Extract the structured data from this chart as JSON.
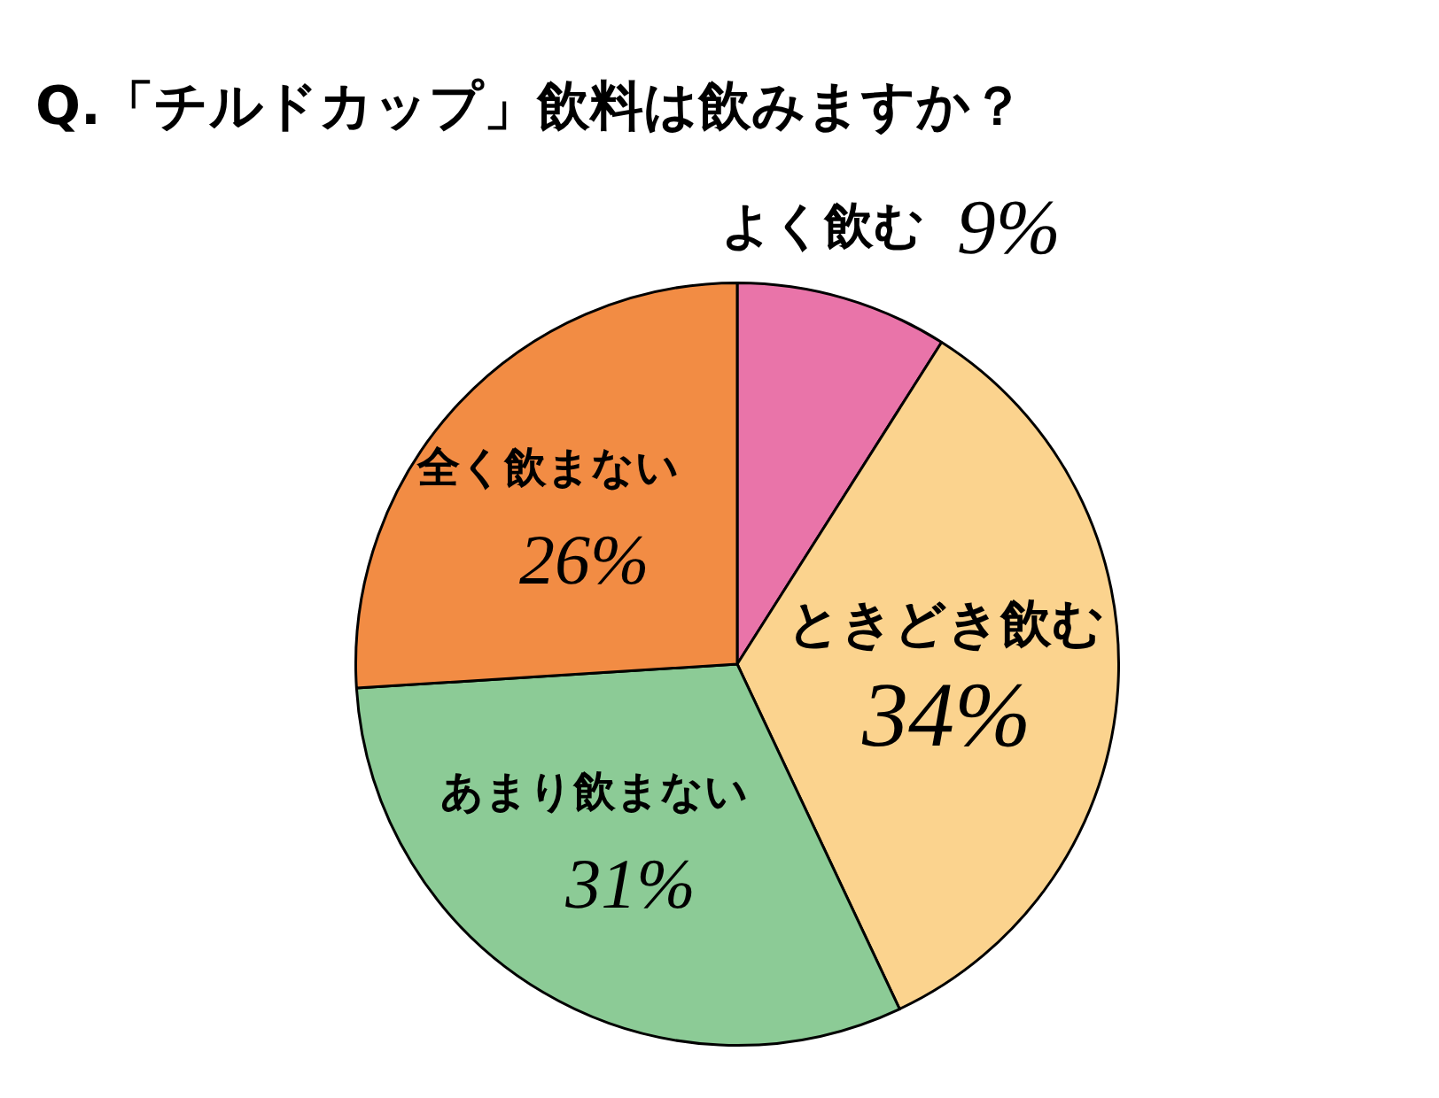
{
  "chart_data": {
    "type": "pie",
    "title": "Q.「チルドカップ」飲料は飲みますか？",
    "categories": [
      "よく飲む",
      "ときどき飲む",
      "あまり飲まない",
      "全く飲まない"
    ],
    "values": [
      9,
      34,
      31,
      26
    ],
    "colors": [
      "#e974a9",
      "#fbd38e",
      "#8ccb96",
      "#f28c44"
    ],
    "value_labels": [
      "9%",
      "34%",
      "31%",
      "26%"
    ],
    "legend": false
  }
}
